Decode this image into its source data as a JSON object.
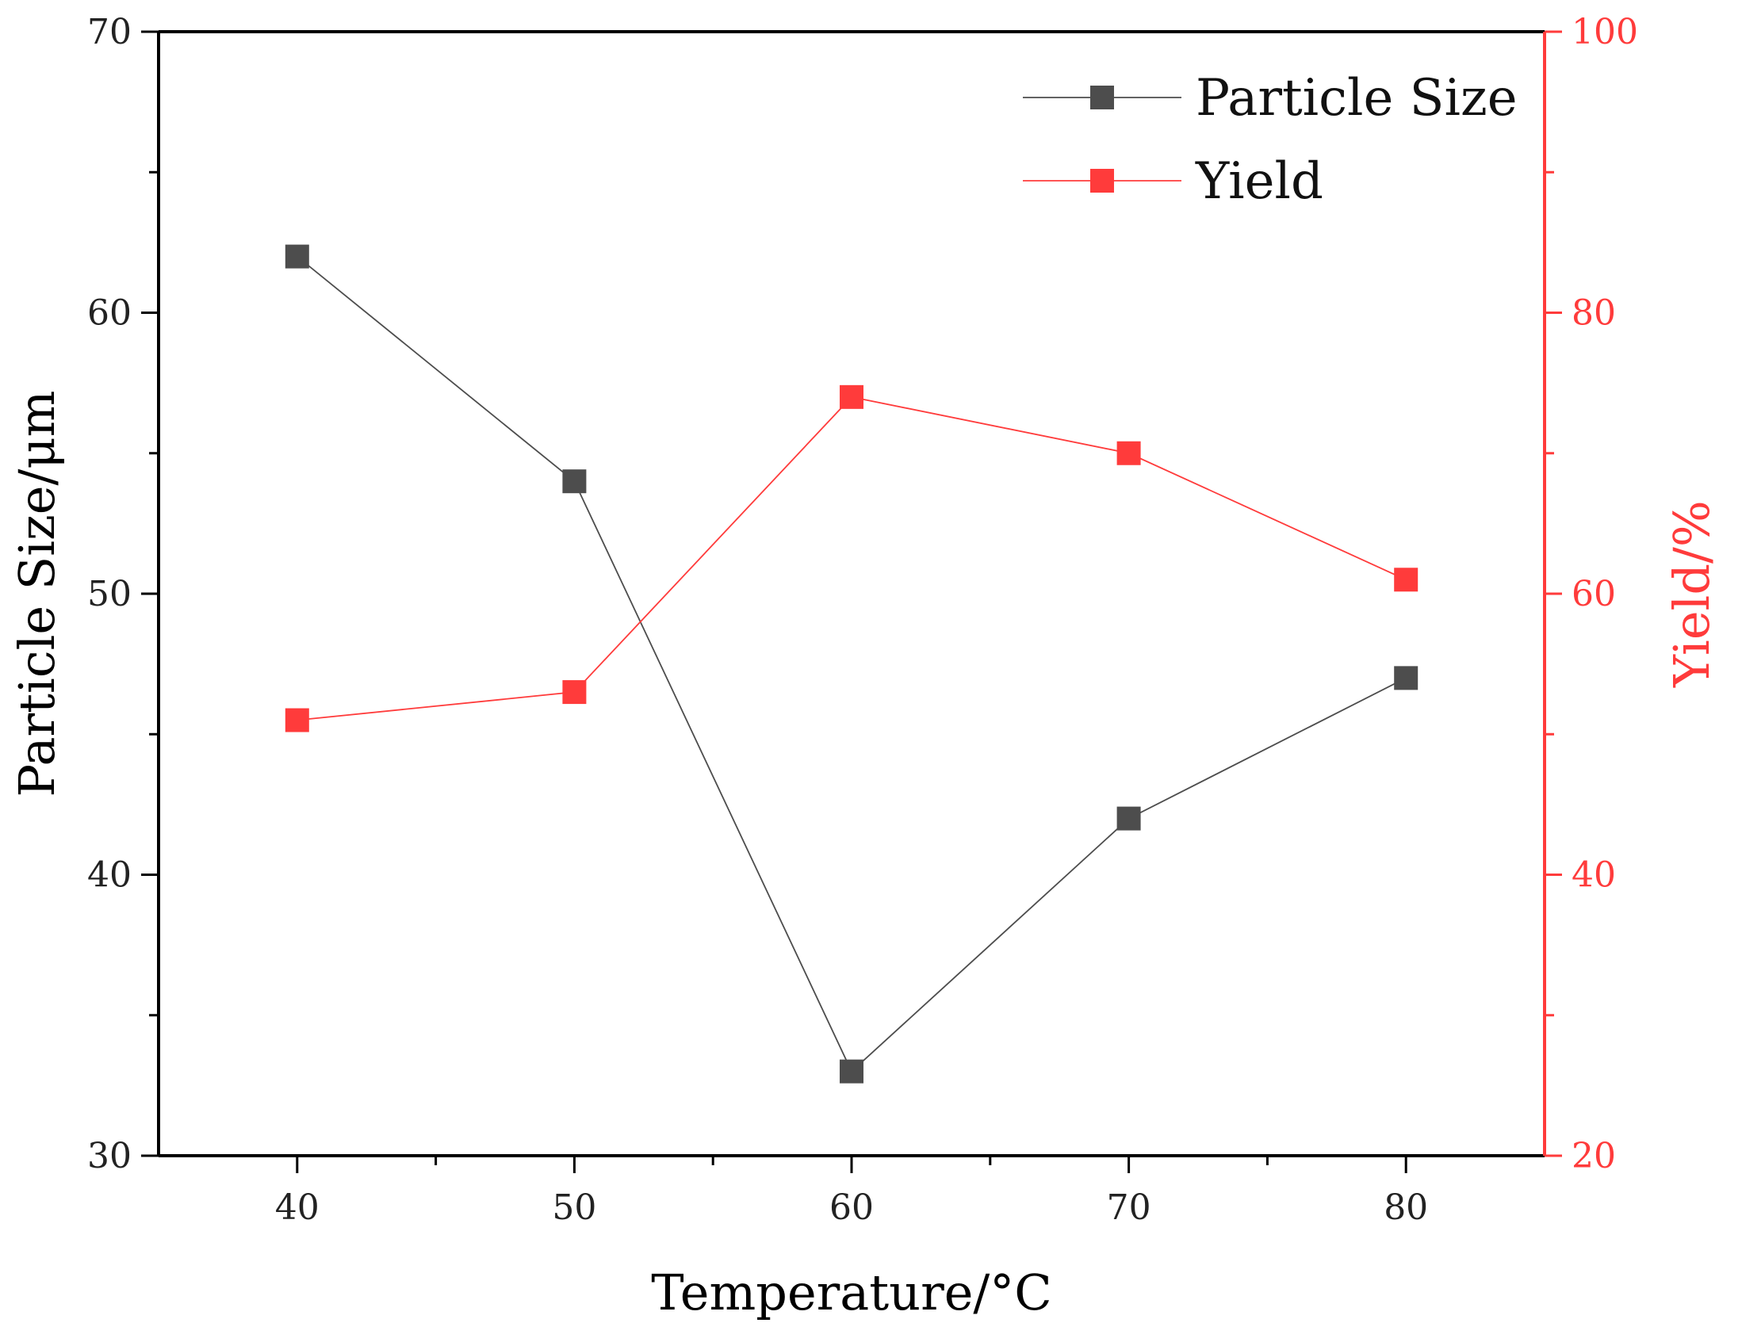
{
  "chart_data": {
    "type": "line",
    "title": "",
    "xlabel": "Temperature/°C",
    "ylabel": "Particle Size/μm",
    "y2label": "Yield/%",
    "x": [
      40,
      50,
      60,
      70,
      80
    ],
    "xlim": [
      35,
      85
    ],
    "xticks": [
      40,
      50,
      60,
      70,
      80
    ],
    "ylim": [
      30,
      70
    ],
    "yticks": [
      30,
      40,
      50,
      60,
      70
    ],
    "y2lim": [
      20,
      100
    ],
    "y2ticks": [
      20,
      40,
      60,
      80,
      100
    ],
    "grid": false,
    "legend_position": "top-right",
    "colors": {
      "axis": "#000000",
      "particle_size": "#4d4d4d",
      "yield": "#ff3b3b"
    },
    "series": [
      {
        "name": "Particle Size",
        "axis": "left",
        "values": [
          62,
          54,
          33,
          42,
          47
        ]
      },
      {
        "name": "Yield",
        "axis": "right",
        "values": [
          51,
          53,
          74,
          70,
          61
        ]
      }
    ]
  }
}
